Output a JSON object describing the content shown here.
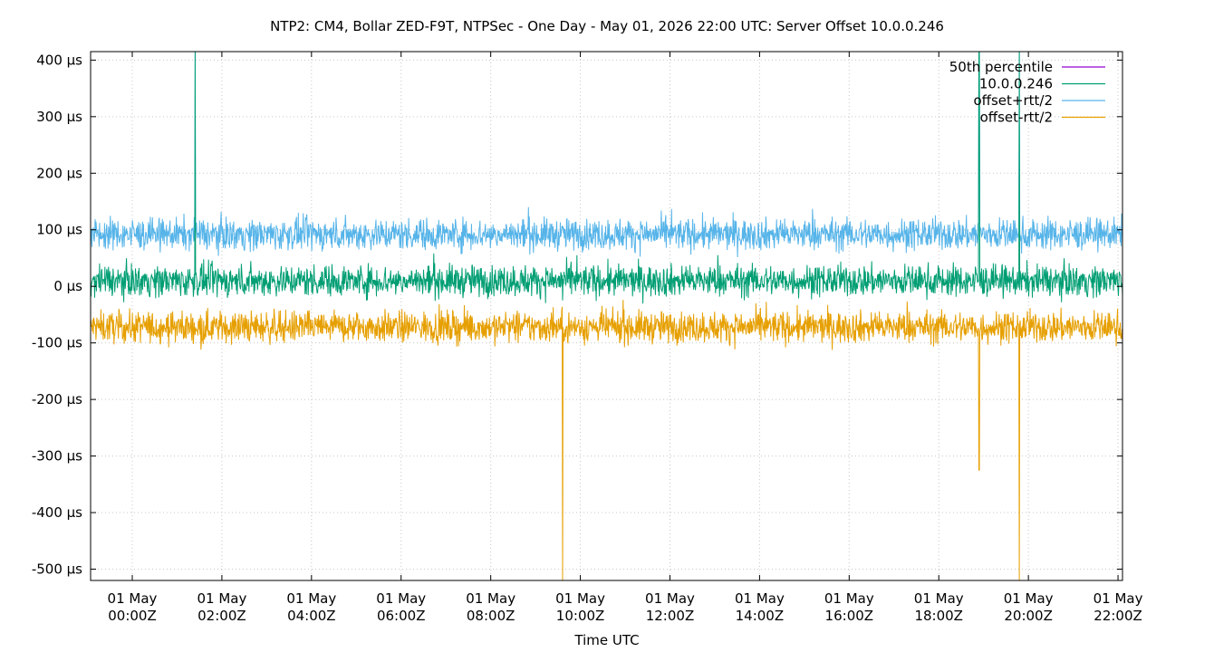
{
  "chart_data": {
    "type": "line",
    "title": "NTP2: CM4, Bollar ZED-F9T, NTPSec - One Day - May 01, 2026 22:00 UTC: Server Offset 10.0.0.246",
    "xlabel": "Time UTC",
    "ylabel": "",
    "x_range_hours": [
      -0.93,
      22.1
    ],
    "y_unit": "µs",
    "ylim": [
      -520,
      415
    ],
    "y_ticks": [
      400,
      300,
      200,
      100,
      0,
      -100,
      -200,
      -300,
      -400,
      -500
    ],
    "y_tick_labels": [
      "400 µs",
      "300 µs",
      "200 µs",
      "100 µs",
      "0 µs",
      "-100 µs",
      "-200 µs",
      "-300 µs",
      "-400 µs",
      "-500 µs"
    ],
    "x_ticks_hours": [
      0,
      2,
      4,
      6,
      8,
      10,
      12,
      14,
      16,
      18,
      20,
      22
    ],
    "x_tick_labels": [
      [
        "01 May",
        "00:00Z"
      ],
      [
        "01 May",
        "02:00Z"
      ],
      [
        "01 May",
        "04:00Z"
      ],
      [
        "01 May",
        "06:00Z"
      ],
      [
        "01 May",
        "08:00Z"
      ],
      [
        "01 May",
        "10:00Z"
      ],
      [
        "01 May",
        "12:00Z"
      ],
      [
        "01 May",
        "14:00Z"
      ],
      [
        "01 May",
        "16:00Z"
      ],
      [
        "01 May",
        "18:00Z"
      ],
      [
        "01 May",
        "20:00Z"
      ],
      [
        "01 May",
        "22:00Z"
      ]
    ],
    "grid": true,
    "legend_position": "top-right",
    "series": [
      {
        "name": "50th percentile",
        "color": "#9400d3",
        "mean": 10,
        "noise": 0,
        "values": []
      },
      {
        "name": "10.0.0.246",
        "color": "#009e73",
        "mean": 10,
        "noise": 14,
        "spikes": [
          {
            "hour": 1.4,
            "value": 415
          },
          {
            "hour": 9.6,
            "value": -25
          },
          {
            "hour": 18.9,
            "value": 415
          },
          {
            "hour": 19.8,
            "value": 415
          }
        ]
      },
      {
        "name": "offset+rtt/2",
        "color": "#56b4e9",
        "mean": 92,
        "noise": 14,
        "spikes": [
          {
            "hour": 1.4,
            "value": 415
          },
          {
            "hour": 18.9,
            "value": 415
          },
          {
            "hour": 19.8,
            "value": 415
          }
        ]
      },
      {
        "name": "offset-rtt/2",
        "color": "#e69f00",
        "mean": -72,
        "noise": 14,
        "spikes": [
          {
            "hour": 9.6,
            "value": -520
          },
          {
            "hour": 18.9,
            "value": -325
          },
          {
            "hour": 19.8,
            "value": -520
          }
        ]
      }
    ]
  }
}
